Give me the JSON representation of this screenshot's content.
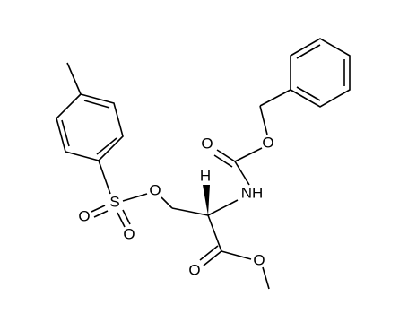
{
  "atoms": [
    "O",
    "S",
    "O",
    "O",
    "H",
    "NH",
    "O",
    "O",
    "O",
    "O"
  ]
}
